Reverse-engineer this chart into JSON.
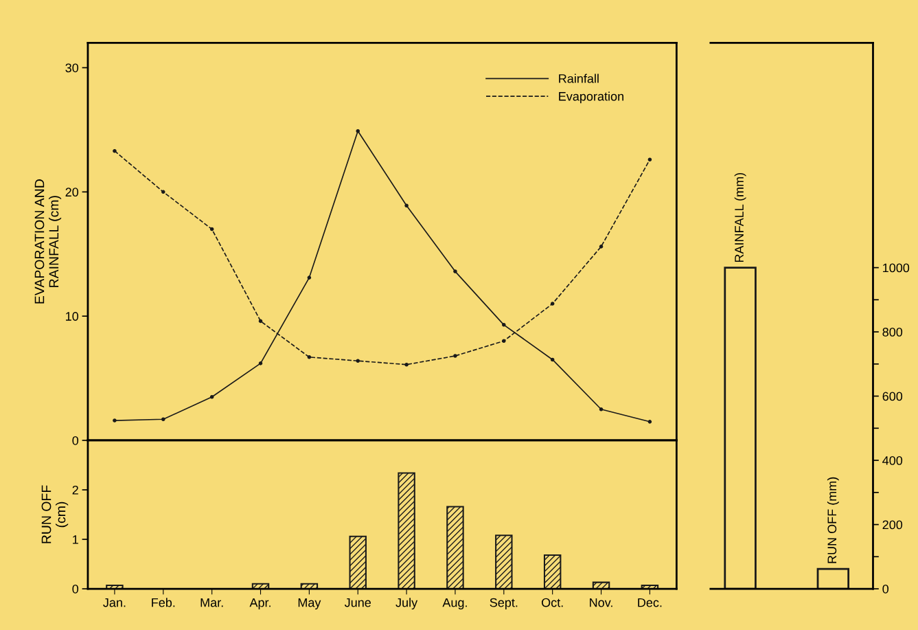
{
  "chart_data": [
    {
      "type": "line",
      "ylabel": "EVAPORATION AND\nRAINFALL (cm)",
      "categories": [
        null,
        null,
        null,
        null,
        null,
        null,
        null,
        null,
        null,
        null,
        null,
        null
      ],
      "ylim": [
        0,
        32
      ],
      "yticks": [
        0,
        10,
        20,
        30
      ],
      "tick_labels": "y",
      "legend": "top right",
      "marker": "circle",
      "grid": false,
      "series": [
        {
          "name": "Rainfall",
          "color": "#1a1a1a",
          "line_style": "solid",
          "values": [
            1.6,
            1.7,
            3.5,
            6.2,
            13.1,
            24.9,
            18.9,
            13.6,
            9.3,
            6.5,
            2.5,
            1.5
          ]
        },
        {
          "name": "Evaporation",
          "color": "#1a1a1a",
          "line_style": "dashed",
          "values": [
            23.3,
            20.0,
            17.0,
            9.6,
            6.7,
            6.4,
            6.1,
            6.8,
            8.0,
            11.0,
            15.6,
            22.6
          ]
        }
      ]
    },
    {
      "type": "bar",
      "ylabel": "RUN OFF\n(cm)",
      "categories": [
        "Jan.",
        "Feb.",
        "Mar.",
        "Apr.",
        "May",
        "June",
        "July",
        "Aug.",
        "Sept.",
        "Oct.",
        "Nov.",
        "Dec."
      ],
      "ylim": [
        0,
        3
      ],
      "yticks": [
        0,
        1,
        2
      ],
      "grid": false,
      "series": [
        {
          "color": "#1a1a1a",
          "values": [
            0.07,
            0,
            0,
            0.1,
            0.1,
            1.06,
            2.34,
            1.66,
            1.08,
            0.68,
            0.13,
            0.07
          ]
        }
      ]
    },
    {
      "type": "bar",
      "categories": [
        "RAINFALL (mm)",
        "RUN OFF (mm)"
      ],
      "ylim": [
        0,
        1700
      ],
      "yticks": [
        0,
        {
          "value": 100,
          "label": null
        },
        200,
        {
          "value": 300,
          "label": null
        },
        400,
        {
          "value": 500,
          "label": null
        },
        600,
        {
          "value": 700,
          "label": null
        },
        800,
        {
          "value": 900,
          "label": null
        },
        1000
      ],
      "grid": false,
      "series": [
        {
          "color": "#1a1a1a",
          "values": [
            1000,
            62
          ]
        }
      ]
    }
  ]
}
